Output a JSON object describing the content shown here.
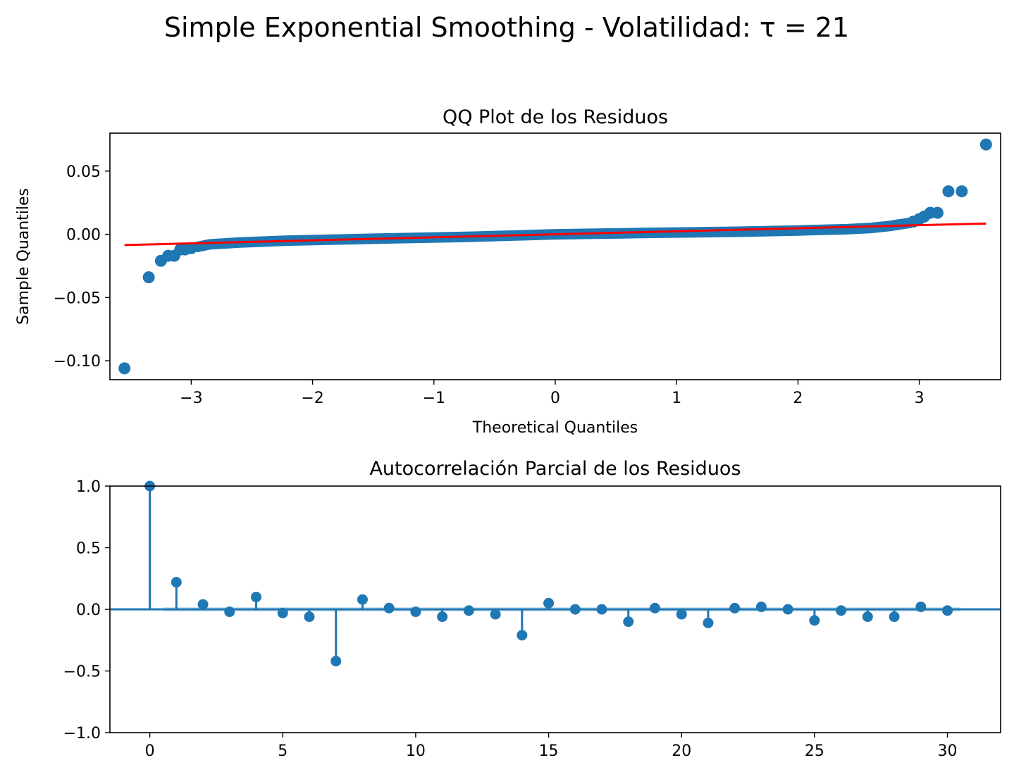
{
  "figure": {
    "title": "Simple Exponential Smoothing - Volatilidad: τ = 21"
  },
  "chart_data": [
    {
      "type": "scatter",
      "title": "QQ Plot de los Residuos",
      "xlabel": "Theoretical Quantiles",
      "ylabel": "Sample Quantiles",
      "xlim": [
        -3.67,
        3.67
      ],
      "ylim": [
        -0.115,
        0.08
      ],
      "xticks": [
        -3,
        -2,
        -1,
        0,
        1,
        2,
        3
      ],
      "xtick_labels": [
        "−3",
        "−2",
        "−1",
        "0",
        "1",
        "2",
        "3"
      ],
      "yticks": [
        -0.1,
        -0.05,
        0.0,
        0.05
      ],
      "ytick_labels": [
        "−0.10",
        "−0.05",
        "0.00",
        "0.05"
      ],
      "marker_color": "#1f77b4",
      "line_color": "#ff0000",
      "reference_line": {
        "x": [
          -3.55,
          3.55
        ],
        "y": [
          -0.0085,
          0.0085
        ]
      },
      "outlier_points": [
        [
          -3.55,
          -0.106
        ],
        [
          -3.35,
          -0.034
        ],
        [
          -3.25,
          -0.021
        ],
        [
          -3.19,
          -0.017
        ],
        [
          -3.14,
          -0.017
        ],
        [
          -3.09,
          -0.012
        ],
        [
          -3.05,
          -0.012
        ],
        [
          -3.0,
          -0.011
        ],
        [
          2.95,
          0.01
        ],
        [
          3.0,
          0.012
        ],
        [
          3.04,
          0.014
        ],
        [
          3.09,
          0.017
        ],
        [
          3.15,
          0.017
        ],
        [
          3.24,
          0.034
        ],
        [
          3.35,
          0.034
        ],
        [
          3.55,
          0.071
        ]
      ],
      "body_curve": [
        [
          -2.95,
          -0.01
        ],
        [
          -2.85,
          -0.008
        ],
        [
          -2.6,
          -0.0065
        ],
        [
          -2.2,
          -0.005
        ],
        [
          -1.5,
          -0.0035
        ],
        [
          -0.7,
          -0.002
        ],
        [
          0.0,
          0.0
        ],
        [
          0.7,
          0.001
        ],
        [
          1.5,
          0.002
        ],
        [
          2.0,
          0.003
        ],
        [
          2.4,
          0.004
        ],
        [
          2.6,
          0.005
        ],
        [
          2.75,
          0.0065
        ],
        [
          2.85,
          0.008
        ],
        [
          2.92,
          0.009
        ]
      ]
    },
    {
      "type": "stem",
      "title": "Autocorrelación Parcial de los Residuos",
      "xlim": [
        -1.5,
        32
      ],
      "ylim": [
        -1.0,
        1.0
      ],
      "xticks": [
        0,
        5,
        10,
        15,
        20,
        25,
        30
      ],
      "xtick_labels": [
        "0",
        "5",
        "10",
        "15",
        "20",
        "25",
        "30"
      ],
      "yticks": [
        -1.0,
        -0.5,
        0.0,
        0.5,
        1.0
      ],
      "ytick_labels": [
        "−1.0",
        "−0.5",
        "0.0",
        "0.5",
        "1.0"
      ],
      "color": "#1f77b4",
      "confidence_band": 0.017,
      "lags": [
        0,
        1,
        2,
        3,
        4,
        5,
        6,
        7,
        8,
        9,
        10,
        11,
        12,
        13,
        14,
        15,
        16,
        17,
        18,
        19,
        20,
        21,
        22,
        23,
        24,
        25,
        26,
        27,
        28,
        29,
        30
      ],
      "values": [
        1.0,
        0.22,
        0.04,
        -0.02,
        0.1,
        -0.03,
        -0.06,
        -0.42,
        0.08,
        0.01,
        -0.02,
        -0.06,
        -0.01,
        -0.04,
        -0.21,
        0.05,
        0.0,
        0.0,
        -0.1,
        0.01,
        -0.04,
        -0.11,
        0.01,
        0.02,
        0.0,
        -0.09,
        -0.01,
        -0.06,
        -0.06,
        0.02,
        -0.01
      ]
    }
  ]
}
